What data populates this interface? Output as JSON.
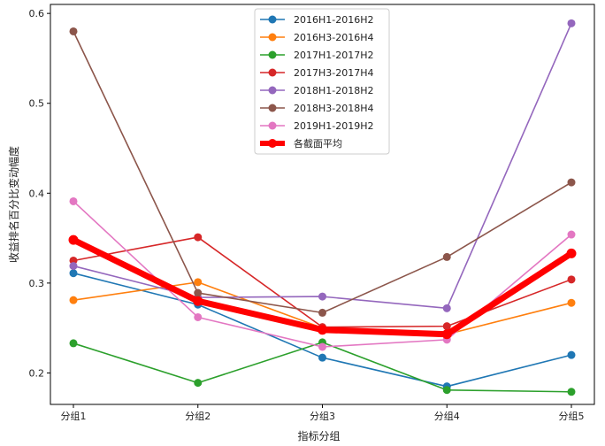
{
  "chart_data": {
    "type": "line",
    "xlabel": "指标分组",
    "ylabel": "收益排名百分比变动幅度",
    "categories": [
      "分组1",
      "分组2",
      "分组3",
      "分组4",
      "分组5"
    ],
    "ylim": [
      0.165,
      0.61
    ],
    "yticks": [
      0.2,
      0.3,
      0.4,
      0.5,
      0.6
    ],
    "grid": false,
    "legend_position": "top-center",
    "series": [
      {
        "name": "2016H1-2016H2",
        "color": "#1f77b4",
        "values": [
          0.311,
          0.276,
          0.217,
          0.185,
          0.22
        ]
      },
      {
        "name": "2016H3-2016H4",
        "color": "#ff7f0e",
        "values": [
          0.281,
          0.301,
          0.25,
          0.243,
          0.278
        ]
      },
      {
        "name": "2017H1-2017H2",
        "color": "#2ca02c",
        "values": [
          0.233,
          0.189,
          0.234,
          0.181,
          0.179
        ]
      },
      {
        "name": "2017H3-2017H4",
        "color": "#d62728",
        "values": [
          0.325,
          0.351,
          0.251,
          0.252,
          0.304
        ]
      },
      {
        "name": "2018H1-2018H2",
        "color": "#9467bd",
        "values": [
          0.319,
          0.284,
          0.285,
          0.272,
          0.589
        ]
      },
      {
        "name": "2018H3-2018H4",
        "color": "#8c564b",
        "values": [
          0.58,
          0.289,
          0.267,
          0.329,
          0.412
        ]
      },
      {
        "name": "2019H1-2019H2",
        "color": "#e377c2",
        "values": [
          0.391,
          0.262,
          0.229,
          0.237,
          0.354
        ]
      },
      {
        "name": "各截面平均",
        "color": "#ff0000",
        "values": [
          0.348,
          0.28,
          0.248,
          0.243,
          0.333
        ],
        "emphasis": true
      }
    ]
  }
}
